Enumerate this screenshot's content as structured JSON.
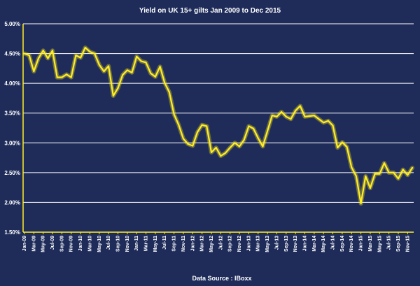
{
  "chart_data": {
    "type": "line",
    "title": "Yield on UK 15+ gilts Jan 2009 to Dec 2015",
    "source": "Data Source : IBoxx",
    "xlabel": "",
    "ylabel": "",
    "ylim": [
      1.5,
      5.0
    ],
    "y_ticks": [
      "1.50%",
      "2.00%",
      "2.50%",
      "3.00%",
      "3.50%",
      "4.00%",
      "4.50%",
      "5.00%"
    ],
    "x_tick_labels": [
      "Jan-09",
      "Mar-09",
      "May-09",
      "Jul-09",
      "Sep-09",
      "Nov-09",
      "Jan-10",
      "Mar-10",
      "May-10",
      "Jul-10",
      "Sep-10",
      "Nov-10",
      "Jan-11",
      "Mar-11",
      "May-11",
      "Jul-11",
      "Sep-11",
      "Nov-11",
      "Jan-12",
      "Mar-12",
      "May-12",
      "Jul-12",
      "Sep-12",
      "Nov-12",
      "Jan-13",
      "Mar-13",
      "May-13",
      "Jul-13",
      "Sep-13",
      "Nov-13",
      "Jan-14",
      "Mar-14",
      "May-14",
      "Jul-14",
      "Sep-14",
      "Nov-14",
      "Jan-15",
      "Mar-15",
      "May-15",
      "Jul-15",
      "Sep-15",
      "Nov-15"
    ],
    "grid": true,
    "legend": "none",
    "colors": {
      "background": "#1f2c5a",
      "line": "#ffee22",
      "grid": "#ffffff",
      "axis": "#ffee22",
      "text": "#ffffff"
    },
    "series": [
      {
        "values": [
          4.5,
          4.47,
          4.2,
          4.42,
          4.55,
          4.42,
          4.55,
          4.1,
          4.1,
          4.15,
          4.1,
          4.47,
          4.43,
          4.6,
          4.53,
          4.5,
          4.31,
          4.2,
          4.29,
          3.79,
          3.92,
          4.14,
          4.22,
          4.18,
          4.45,
          4.37,
          4.35,
          4.17,
          4.11,
          4.28,
          4.01,
          3.85,
          3.48,
          3.3,
          3.07,
          2.98,
          2.95,
          3.18,
          3.3,
          3.28,
          2.84,
          2.92,
          2.78,
          2.83,
          2.92,
          3.0,
          2.94,
          3.05,
          3.28,
          3.24,
          3.08,
          2.94,
          3.2,
          3.46,
          3.44,
          3.52,
          3.44,
          3.4,
          3.54,
          3.62,
          3.44,
          3.45,
          3.46,
          3.4,
          3.34,
          3.37,
          3.29,
          2.92,
          3.01,
          2.93,
          2.59,
          2.44,
          1.98,
          2.44,
          2.24,
          2.48,
          2.48,
          2.66,
          2.5,
          2.5,
          2.4,
          2.55,
          2.46,
          2.58
        ]
      }
    ]
  }
}
